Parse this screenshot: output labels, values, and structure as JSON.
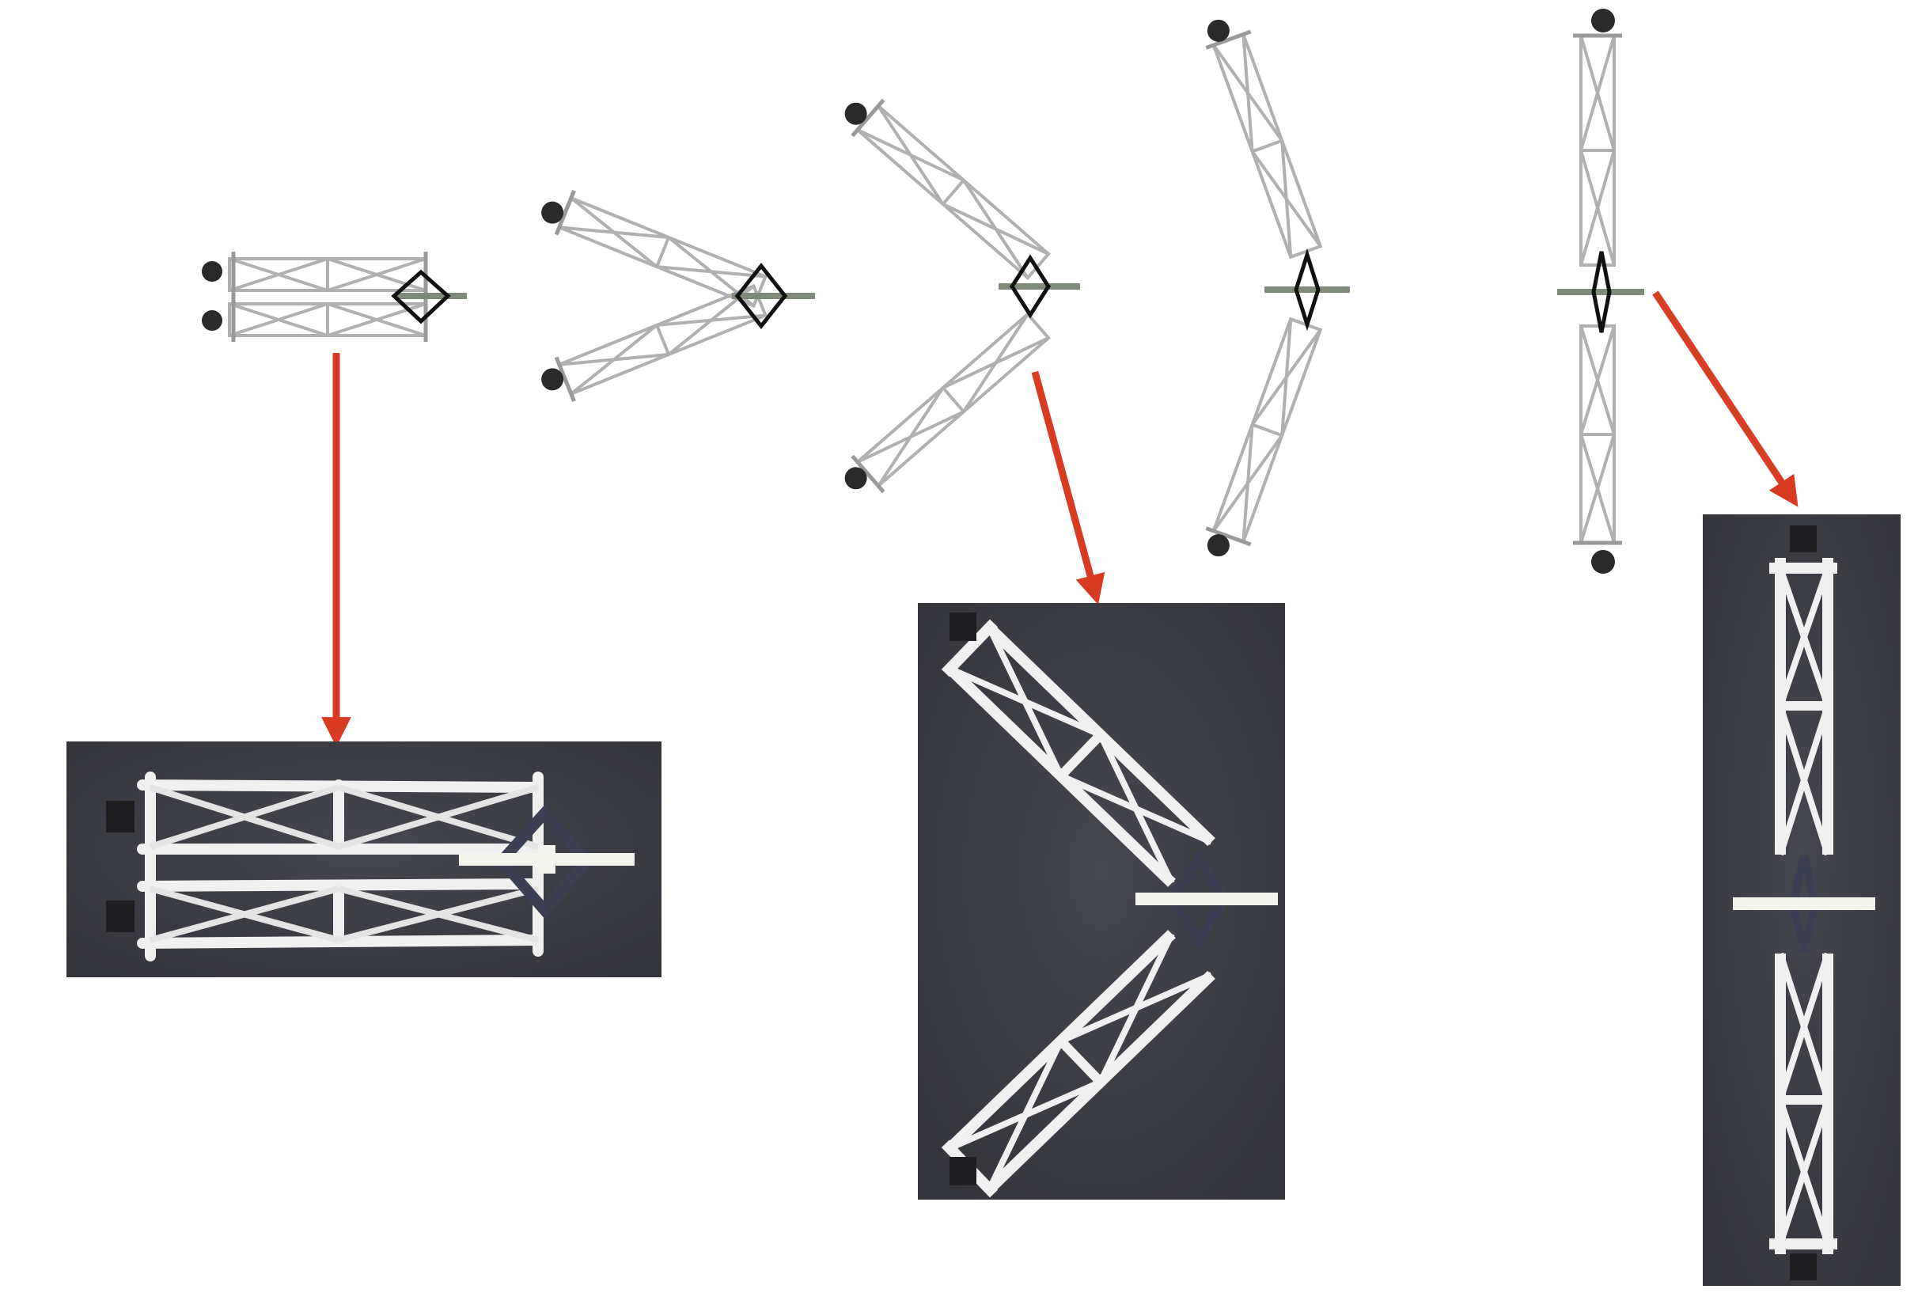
{
  "figure": {
    "description_text": "",
    "colors": {
      "truss": "#b8b8b8",
      "truss_dark": "#9a9a9a",
      "rhombus": "#111111",
      "shaft": "#7f8a7a",
      "wheel": "#2a2a2a",
      "arrow": "#d93a22",
      "photo_bg": "#3d3e44",
      "photo_truss": "#f2f2f2",
      "photo_linkage": "#3c3f52"
    },
    "stages": [
      {
        "id": "stage-1",
        "fold_angle_deg": 0
      },
      {
        "id": "stage-2",
        "fold_angle_deg": 26
      },
      {
        "id": "stage-3",
        "fold_angle_deg": 48
      },
      {
        "id": "stage-4",
        "fold_angle_deg": 68
      },
      {
        "id": "stage-5",
        "fold_angle_deg": 90
      }
    ],
    "photos": [
      {
        "id": "photo-folded",
        "source_stage": "stage-1"
      },
      {
        "id": "photo-partial",
        "source_stage": "stage-3"
      },
      {
        "id": "photo-deployed",
        "source_stage": "stage-5"
      }
    ],
    "arrow_icon": "arrow-down-icon"
  }
}
